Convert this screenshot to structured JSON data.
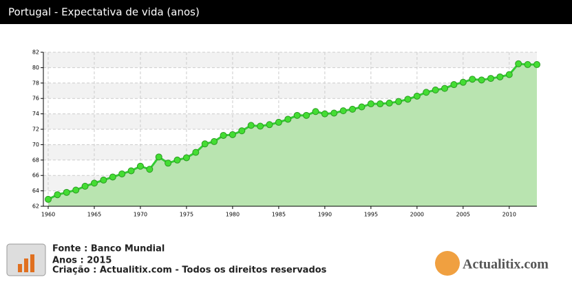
{
  "chart_data": {
    "type": "line",
    "title": "Portugal - Expectativa de vida (anos)",
    "x": [
      1960,
      1961,
      1962,
      1963,
      1964,
      1965,
      1966,
      1967,
      1968,
      1969,
      1970,
      1971,
      1972,
      1973,
      1974,
      1975,
      1976,
      1977,
      1978,
      1979,
      1980,
      1981,
      1982,
      1983,
      1984,
      1985,
      1986,
      1987,
      1988,
      1989,
      1990,
      1991,
      1992,
      1993,
      1994,
      1995,
      1996,
      1997,
      1998,
      1999,
      2000,
      2001,
      2002,
      2003,
      2004,
      2005,
      2006,
      2007,
      2008,
      2009,
      2010,
      2011,
      2012,
      2013
    ],
    "series": [
      {
        "color": "#33cc33",
        "values": [
          62.9,
          63.5,
          63.8,
          64.1,
          64.6,
          65.0,
          65.4,
          65.8,
          66.2,
          66.6,
          67.2,
          66.8,
          68.4,
          67.6,
          68.0,
          68.3,
          69.0,
          70.1,
          70.4,
          71.2,
          71.3,
          71.8,
          72.5,
          72.4,
          72.6,
          72.9,
          73.3,
          73.8,
          73.8,
          74.3,
          74.0,
          74.1,
          74.4,
          74.6,
          74.9,
          75.3,
          75.3,
          75.4,
          75.6,
          75.9,
          76.3,
          76.8,
          77.1,
          77.3,
          77.8,
          78.1,
          78.5,
          78.4,
          78.6,
          78.8,
          79.1,
          80.5,
          80.4,
          80.4
        ]
      }
    ],
    "xlim": [
      1960,
      2013
    ],
    "xticks": [
      1960,
      1965,
      1970,
      1975,
      1980,
      1985,
      1990,
      1995,
      2000,
      2005,
      2010
    ],
    "ylim": [
      62,
      82
    ],
    "yticks": [
      62,
      64,
      66,
      68,
      70,
      72,
      74,
      76,
      78,
      80,
      82
    ],
    "grid": true,
    "footer": {
      "source": "Fonte : Banco Mundial",
      "years": "Anos : 2015",
      "credit": "Criação : Actualitix.com - Todos os direitos reservados",
      "logo": "Actualitix.com"
    }
  }
}
